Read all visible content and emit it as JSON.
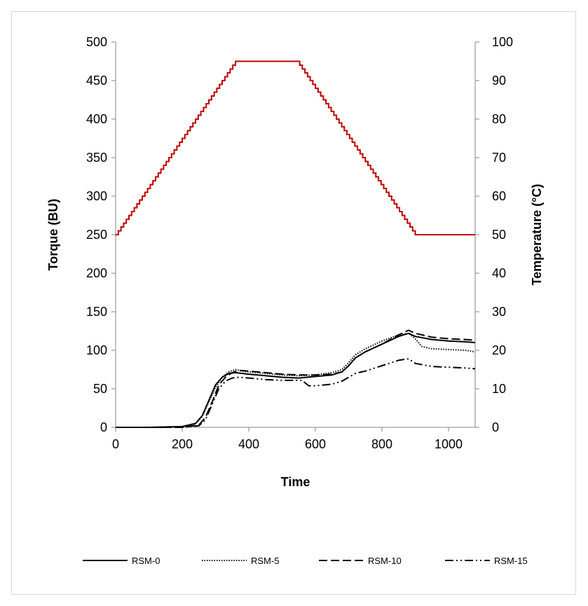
{
  "chart_data": {
    "type": "line",
    "title": "",
    "xlabel": "Time",
    "ylabel": "Torque (BU)",
    "y2label": "Temperature (°C)",
    "xlim": [
      0,
      1080
    ],
    "ylim": [
      0,
      500
    ],
    "y2lim": [
      0,
      100
    ],
    "x_ticks": [
      0,
      200,
      400,
      600,
      800,
      1000
    ],
    "y_ticks": [
      0,
      50,
      100,
      150,
      200,
      250,
      300,
      350,
      400,
      450,
      500
    ],
    "y2_ticks": [
      0,
      10,
      20,
      30,
      40,
      50,
      60,
      70,
      80,
      90,
      100
    ],
    "grid": false,
    "legend_position": "bottom",
    "temperature": {
      "color": "#c00000",
      "axis": "right",
      "x": [
        0,
        360,
        545,
        900,
        1080
      ],
      "values": [
        50,
        95,
        95,
        50,
        50
      ]
    },
    "series": [
      {
        "name": "RSM-0",
        "dash": "solid",
        "x": [
          0,
          100,
          200,
          240,
          260,
          280,
          300,
          320,
          340,
          360,
          380,
          400,
          450,
          500,
          550,
          600,
          650,
          680,
          700,
          720,
          750,
          800,
          850,
          880,
          900,
          950,
          1000,
          1050,
          1080
        ],
        "values": [
          0,
          0,
          1,
          5,
          15,
          35,
          55,
          65,
          70,
          71,
          70,
          69,
          67,
          65,
          64,
          66,
          68,
          72,
          80,
          90,
          98,
          108,
          118,
          122,
          118,
          114,
          112,
          111,
          110
        ]
      },
      {
        "name": "RSM-5",
        "dash": "dotted",
        "x": [
          0,
          100,
          200,
          240,
          260,
          280,
          300,
          320,
          340,
          360,
          380,
          400,
          450,
          500,
          550,
          600,
          650,
          680,
          700,
          720,
          750,
          800,
          850,
          880,
          900,
          920,
          950,
          1000,
          1050,
          1080
        ],
        "values": [
          0,
          0,
          1,
          5,
          14,
          33,
          52,
          65,
          72,
          75,
          73,
          72,
          70,
          68,
          67,
          68,
          71,
          75,
          84,
          94,
          102,
          112,
          120,
          122,
          115,
          105,
          102,
          101,
          100,
          98
        ]
      },
      {
        "name": "RSM-10",
        "dash": "long-dash",
        "x": [
          0,
          100,
          200,
          250,
          270,
          290,
          310,
          330,
          350,
          370,
          400,
          450,
          500,
          550,
          600,
          650,
          680,
          700,
          720,
          750,
          800,
          850,
          880,
          900,
          950,
          1000,
          1050,
          1080
        ],
        "values": [
          0,
          0,
          0,
          3,
          13,
          33,
          55,
          65,
          71,
          74,
          73,
          71,
          69,
          68,
          68,
          69,
          72,
          80,
          90,
          98,
          108,
          120,
          126,
          122,
          117,
          115,
          114,
          113
        ]
      },
      {
        "name": "RSM-15",
        "dash": "dash-dot-dot",
        "x": [
          0,
          100,
          200,
          250,
          270,
          290,
          310,
          330,
          350,
          370,
          400,
          450,
          500,
          560,
          580,
          600,
          650,
          680,
          700,
          720,
          750,
          800,
          850,
          880,
          900,
          950,
          1000,
          1050,
          1080
        ],
        "values": [
          0,
          0,
          0,
          2,
          10,
          30,
          50,
          60,
          64,
          65,
          64,
          62,
          61,
          61,
          54,
          54,
          56,
          60,
          65,
          70,
          73,
          80,
          87,
          89,
          83,
          79,
          78,
          77,
          76
        ]
      }
    ]
  }
}
